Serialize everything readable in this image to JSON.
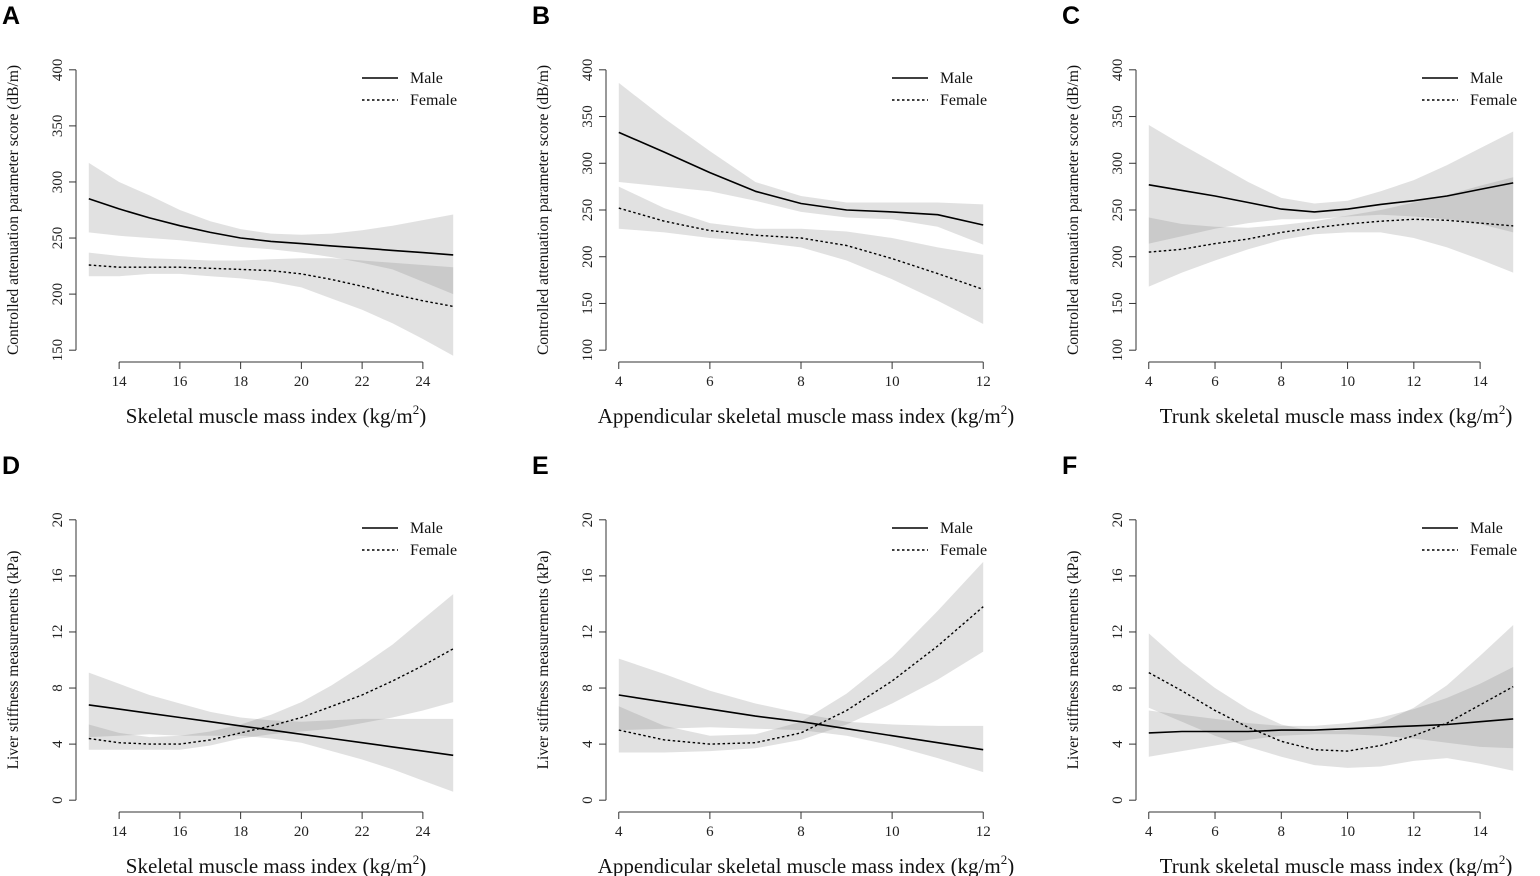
{
  "chart_data": [
    {
      "panel": "A",
      "type": "line",
      "xlabel": "Skeletal muscle mass index (kg/m",
      "xlabel_sup": "2",
      "xlabel_end": ")",
      "ylabel": "Controlled attenuation parameter score (dB/m)",
      "xlim": [
        13,
        25
      ],
      "ylim": [
        150,
        400
      ],
      "xticks": [
        14,
        16,
        18,
        20,
        22,
        24
      ],
      "yticks": [
        150,
        200,
        250,
        300,
        350,
        400
      ],
      "legend": [
        "Male",
        "Female"
      ],
      "series": [
        {
          "name": "Male",
          "style": "solid",
          "x": [
            13,
            14,
            15,
            16,
            17,
            18,
            19,
            20,
            21,
            22,
            23,
            24,
            25
          ],
          "y": [
            285,
            276,
            268,
            261,
            255,
            250,
            247,
            245,
            243,
            241,
            239,
            237,
            235
          ],
          "lower": [
            255,
            252,
            250,
            248,
            245,
            242,
            240,
            237,
            233,
            228,
            222,
            211,
            200
          ],
          "upper": [
            317,
            300,
            288,
            275,
            265,
            258,
            254,
            253,
            254,
            257,
            261,
            266,
            271
          ]
        },
        {
          "name": "Female",
          "style": "dotted",
          "x": [
            13,
            14,
            15,
            16,
            17,
            18,
            19,
            20,
            21,
            22,
            23,
            24,
            25
          ],
          "y": [
            226,
            224,
            224,
            224,
            223,
            222,
            221,
            218,
            213,
            207,
            200,
            194,
            189
          ],
          "lower": [
            216,
            216,
            218,
            218,
            216,
            214,
            211,
            206,
            196,
            186,
            174,
            160,
            145
          ],
          "upper": [
            237,
            234,
            232,
            231,
            230,
            230,
            231,
            232,
            232,
            230,
            228,
            226,
            224
          ]
        }
      ]
    },
    {
      "panel": "B",
      "type": "line",
      "xlabel": "Appendicular skeletal muscle mass index (kg/m",
      "xlabel_sup": "2",
      "xlabel_end": ")",
      "ylabel": "Controlled attenuation parameter score (dB/m)",
      "xlim": [
        4,
        12
      ],
      "ylim": [
        100,
        400
      ],
      "xticks": [
        4,
        6,
        8,
        10,
        12
      ],
      "yticks": [
        100,
        150,
        200,
        250,
        300,
        350,
        400
      ],
      "legend": [
        "Male",
        "Female"
      ],
      "series": [
        {
          "name": "Male",
          "style": "solid",
          "x": [
            4,
            5,
            6,
            7,
            8,
            9,
            10,
            11,
            12
          ],
          "y": [
            333,
            312,
            290,
            270,
            257,
            250,
            248,
            245,
            234
          ],
          "lower": [
            280,
            275,
            270,
            260,
            248,
            242,
            240,
            232,
            213
          ],
          "upper": [
            386,
            348,
            313,
            280,
            265,
            258,
            258,
            258,
            256
          ]
        },
        {
          "name": "Female",
          "style": "dotted",
          "x": [
            4,
            5,
            6,
            7,
            8,
            9,
            10,
            11,
            12
          ],
          "y": [
            252,
            238,
            228,
            223,
            220,
            212,
            198,
            182,
            165
          ],
          "lower": [
            230,
            226,
            220,
            216,
            210,
            196,
            176,
            153,
            128
          ],
          "upper": [
            275,
            252,
            236,
            230,
            230,
            227,
            220,
            210,
            202
          ]
        }
      ]
    },
    {
      "panel": "C",
      "type": "line",
      "xlabel": "Trunk skeletal muscle mass index (kg/m",
      "xlabel_sup": "2",
      "xlabel_end": ")",
      "ylabel": "Controlled attenuation parameter score (dB/m)",
      "xlim": [
        4,
        15
      ],
      "ylim": [
        100,
        400
      ],
      "xticks": [
        4,
        6,
        8,
        10,
        12,
        14
      ],
      "yticks": [
        100,
        150,
        200,
        250,
        300,
        350,
        400
      ],
      "legend": [
        "Male",
        "Female"
      ],
      "series": [
        {
          "name": "Male",
          "style": "solid",
          "x": [
            4,
            5,
            6,
            7,
            8,
            9,
            10,
            11,
            12,
            13,
            14,
            15
          ],
          "y": [
            277,
            271,
            265,
            258,
            251,
            248,
            251,
            256,
            260,
            265,
            272,
            279
          ],
          "lower": [
            214,
            222,
            230,
            236,
            240,
            240,
            243,
            245,
            243,
            240,
            235,
            226
          ],
          "upper": [
            341,
            320,
            300,
            280,
            263,
            257,
            260,
            270,
            282,
            298,
            316,
            334
          ]
        },
        {
          "name": "Female",
          "style": "dotted",
          "x": [
            4,
            5,
            6,
            7,
            8,
            9,
            10,
            11,
            12,
            13,
            14,
            15
          ],
          "y": [
            205,
            208,
            214,
            219,
            226,
            231,
            235,
            238,
            240,
            239,
            236,
            233
          ],
          "lower": [
            168,
            183,
            196,
            208,
            218,
            224,
            226,
            226,
            220,
            210,
            197,
            183
          ],
          "upper": [
            242,
            235,
            232,
            231,
            234,
            238,
            244,
            250,
            258,
            266,
            276,
            285
          ]
        }
      ]
    },
    {
      "panel": "D",
      "type": "line",
      "xlabel": "Skeletal muscle mass index (kg/m",
      "xlabel_sup": "2",
      "xlabel_end": ")",
      "ylabel": "Liver stiffness measurements (kPa)",
      "xlim": [
        13,
        25
      ],
      "ylim": [
        0,
        20
      ],
      "xticks": [
        14,
        16,
        18,
        20,
        22,
        24
      ],
      "yticks": [
        0,
        4,
        8,
        12,
        16,
        20
      ],
      "legend": [
        "Male",
        "Female"
      ],
      "series": [
        {
          "name": "Male",
          "style": "solid",
          "x": [
            13,
            14,
            15,
            16,
            17,
            18,
            19,
            20,
            21,
            22,
            23,
            24,
            25
          ],
          "y": [
            6.8,
            6.5,
            6.2,
            5.9,
            5.6,
            5.3,
            5.0,
            4.7,
            4.4,
            4.1,
            3.8,
            3.5,
            3.2
          ],
          "lower": [
            4.5,
            4.6,
            4.7,
            4.6,
            4.6,
            4.6,
            4.4,
            4.1,
            3.5,
            2.9,
            2.2,
            1.4,
            0.6
          ],
          "upper": [
            9.1,
            8.3,
            7.5,
            6.9,
            6.3,
            5.9,
            5.7,
            5.6,
            5.7,
            5.8,
            5.8,
            5.8,
            5.8
          ]
        },
        {
          "name": "Female",
          "style": "dotted",
          "x": [
            13,
            14,
            15,
            16,
            17,
            18,
            19,
            20,
            21,
            22,
            23,
            24,
            25
          ],
          "y": [
            4.4,
            4.1,
            4.0,
            4.0,
            4.3,
            4.8,
            5.3,
            5.9,
            6.7,
            7.5,
            8.5,
            9.6,
            10.8
          ],
          "lower": [
            3.6,
            3.6,
            3.6,
            3.6,
            3.9,
            4.4,
            4.7,
            4.9,
            5.1,
            5.5,
            5.9,
            6.4,
            7.0
          ],
          "upper": [
            5.4,
            4.8,
            4.5,
            4.6,
            4.9,
            5.4,
            6.1,
            7.0,
            8.2,
            9.6,
            11.1,
            12.9,
            14.7
          ]
        }
      ]
    },
    {
      "panel": "E",
      "type": "line",
      "xlabel": "Appendicular skeletal muscle mass index (kg/m",
      "xlabel_sup": "2",
      "xlabel_end": ")",
      "ylabel": "Liver stiffness measurements (kPa)",
      "xlim": [
        4,
        12
      ],
      "ylim": [
        0,
        20
      ],
      "xticks": [
        4,
        6,
        8,
        10,
        12
      ],
      "yticks": [
        0,
        4,
        8,
        12,
        16,
        20
      ],
      "legend": [
        "Male",
        "Female"
      ],
      "series": [
        {
          "name": "Male",
          "style": "solid",
          "x": [
            4,
            5,
            6,
            7,
            8,
            9,
            10,
            11,
            12
          ],
          "y": [
            7.5,
            7.0,
            6.5,
            6.0,
            5.6,
            5.1,
            4.6,
            4.1,
            3.6
          ],
          "lower": [
            5.0,
            5.1,
            5.2,
            5.1,
            5.0,
            4.6,
            3.9,
            3.0,
            2.0
          ],
          "upper": [
            10.1,
            9.0,
            7.8,
            6.9,
            6.2,
            5.6,
            5.4,
            5.3,
            5.3
          ]
        },
        {
          "name": "Female",
          "style": "dotted",
          "x": [
            4,
            5,
            6,
            7,
            8,
            9,
            10,
            11,
            12
          ],
          "y": [
            5.0,
            4.3,
            4.0,
            4.1,
            4.8,
            6.4,
            8.5,
            11.0,
            13.8
          ],
          "lower": [
            3.4,
            3.4,
            3.5,
            3.7,
            4.3,
            5.4,
            6.9,
            8.6,
            10.6
          ],
          "upper": [
            6.7,
            5.3,
            4.6,
            4.7,
            5.6,
            7.6,
            10.2,
            13.5,
            17.0
          ]
        }
      ]
    },
    {
      "panel": "F",
      "type": "line",
      "xlabel": "Trunk skeletal muscle mass index (kg/m",
      "xlabel_sup": "2",
      "xlabel_end": ")",
      "ylabel": "Liver stiffness measurements (kPa)",
      "xlim": [
        4,
        15
      ],
      "ylim": [
        0,
        20
      ],
      "xticks": [
        4,
        6,
        8,
        10,
        12,
        14
      ],
      "yticks": [
        0,
        4,
        8,
        12,
        16,
        20
      ],
      "legend": [
        "Male",
        "Female"
      ],
      "series": [
        {
          "name": "Male",
          "style": "solid",
          "x": [
            4,
            5,
            6,
            7,
            8,
            9,
            10,
            11,
            12,
            13,
            14,
            15
          ],
          "y": [
            4.8,
            4.9,
            4.9,
            4.9,
            5.0,
            5.0,
            5.1,
            5.2,
            5.3,
            5.4,
            5.6,
            5.8
          ],
          "lower": [
            3.1,
            3.5,
            3.9,
            4.3,
            4.6,
            4.7,
            4.7,
            4.6,
            4.4,
            4.1,
            3.8,
            3.7
          ],
          "upper": [
            6.4,
            6.1,
            5.8,
            5.5,
            5.3,
            5.3,
            5.5,
            5.9,
            6.5,
            7.3,
            8.3,
            9.5
          ]
        },
        {
          "name": "Female",
          "style": "dotted",
          "x": [
            4,
            5,
            6,
            7,
            8,
            9,
            10,
            11,
            12,
            13,
            14,
            15
          ],
          "y": [
            9.1,
            7.8,
            6.4,
            5.2,
            4.2,
            3.6,
            3.5,
            3.9,
            4.6,
            5.5,
            6.8,
            8.1
          ],
          "lower": [
            6.6,
            5.6,
            4.6,
            3.8,
            3.1,
            2.5,
            2.3,
            2.4,
            2.8,
            3.0,
            2.6,
            2.1
          ],
          "upper": [
            11.9,
            9.8,
            8.0,
            6.5,
            5.4,
            4.9,
            5.0,
            5.5,
            6.6,
            8.2,
            10.3,
            12.5
          ]
        }
      ]
    }
  ]
}
